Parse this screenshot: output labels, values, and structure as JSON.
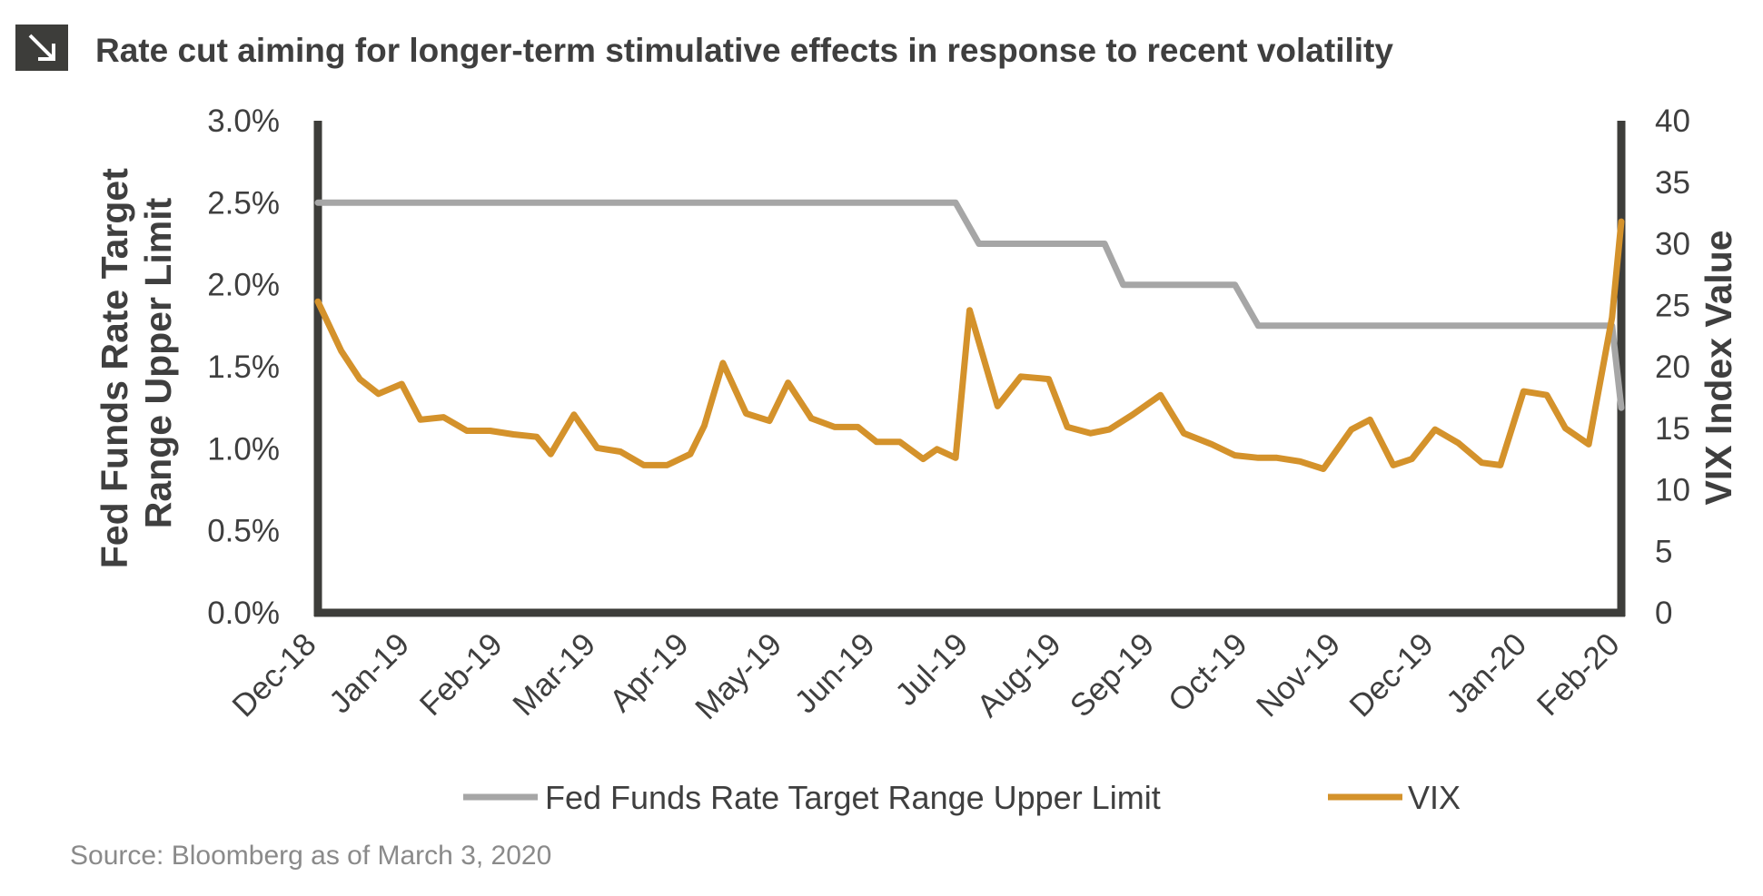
{
  "colors": {
    "fed_line": "#a6a6a6",
    "vix_line": "#d4922b",
    "axis": "#3d3d3a",
    "title_icon_bg": "#3d3d3a",
    "text": "#3f3f3f",
    "source": "#8a8a8a"
  },
  "title_icon": "arrow-down-right-icon",
  "title": "Rate cut aiming for longer-term stimulative effects in response to recent volatility",
  "source": "Source: Bloomberg as of March 3, 2020",
  "chart_data": {
    "type": "line",
    "title": "Rate cut aiming for longer-term stimulative effects in response to recent volatility",
    "x_tick_labels": [
      "Dec-18",
      "Jan-19",
      "Feb-19",
      "Mar-19",
      "Apr-19",
      "May-19",
      "Jun-19",
      "Jul-19",
      "Aug-19",
      "Sep-19",
      "Oct-19",
      "Nov-19",
      "Dec-19",
      "Jan-20",
      "Feb-20"
    ],
    "x_domain": [
      0,
      14
    ],
    "y_left": {
      "label": "Fed Funds Rate Target Range Upper Limit",
      "label_lines": [
        "Fed Funds Rate Target",
        "Range Upper Limit"
      ],
      "range": [
        0,
        3.0
      ],
      "ticks": [
        0,
        0.5,
        1.0,
        1.5,
        2.0,
        2.5,
        3.0
      ],
      "tick_labels": [
        "0.0%",
        "0.5%",
        "1.0%",
        "1.5%",
        "2.0%",
        "2.5%",
        "3.0%"
      ]
    },
    "y_right": {
      "label": "VIX Index Value",
      "range": [
        0,
        40
      ],
      "ticks": [
        0,
        5,
        10,
        15,
        20,
        25,
        30,
        35,
        40
      ],
      "tick_labels": [
        "0",
        "5",
        "10",
        "15",
        "20",
        "25",
        "30",
        "35",
        "40"
      ]
    },
    "series": [
      {
        "name": "Fed Funds Rate Target Range Upper Limit",
        "axis": "left",
        "x": [
          0,
          6.85,
          7.1,
          8.45,
          8.65,
          9.85,
          10.1,
          13.9,
          14.0
        ],
        "values": [
          2.5,
          2.5,
          2.25,
          2.25,
          2.0,
          2.0,
          1.75,
          1.75,
          1.25
        ]
      },
      {
        "name": "VIX",
        "axis": "right",
        "x": [
          0,
          0.25,
          0.45,
          0.65,
          0.9,
          1.1,
          1.35,
          1.6,
          1.85,
          2.1,
          2.35,
          2.5,
          2.75,
          3.0,
          3.25,
          3.5,
          3.75,
          4.0,
          4.15,
          4.35,
          4.6,
          4.85,
          5.05,
          5.3,
          5.55,
          5.8,
          6.0,
          6.25,
          6.5,
          6.65,
          6.85,
          7.0,
          7.3,
          7.55,
          7.85,
          8.05,
          8.3,
          8.5,
          8.75,
          9.05,
          9.3,
          9.6,
          9.85,
          10.1,
          10.3,
          10.55,
          10.8,
          11.1,
          11.3,
          11.55,
          11.75,
          12.0,
          12.25,
          12.5,
          12.7,
          12.95,
          13.2,
          13.4,
          13.65,
          13.9,
          14.0
        ],
        "values": [
          25.3,
          21.3,
          19.0,
          17.8,
          18.6,
          15.7,
          15.9,
          14.8,
          14.8,
          14.5,
          14.3,
          12.9,
          16.1,
          13.4,
          13.1,
          12.0,
          12.0,
          12.9,
          15.2,
          20.3,
          16.2,
          15.6,
          18.7,
          15.8,
          15.1,
          15.1,
          13.9,
          13.9,
          12.5,
          13.3,
          12.6,
          24.6,
          16.8,
          19.2,
          19.0,
          15.1,
          14.6,
          14.9,
          16.1,
          17.7,
          14.6,
          13.7,
          12.8,
          12.6,
          12.6,
          12.3,
          11.7,
          14.9,
          15.7,
          12.0,
          12.5,
          14.9,
          13.8,
          12.2,
          12.0,
          18.0,
          17.7,
          15.0,
          13.7,
          24.0,
          31.8
        ]
      }
    ],
    "legend": {
      "position": "bottom-center",
      "entries": [
        "Fed Funds Rate Target Range Upper Limit",
        "VIX"
      ]
    }
  }
}
